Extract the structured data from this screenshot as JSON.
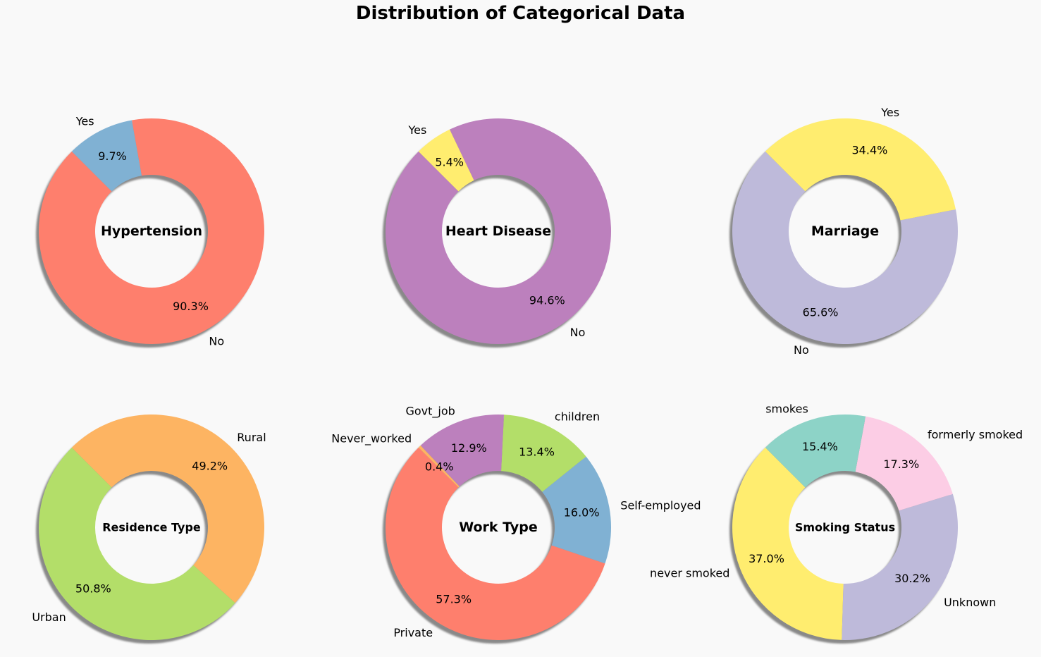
{
  "figure": {
    "title": "Distribution of Categorical Data",
    "background": "#f9f9f9"
  },
  "chart_data": [
    {
      "type": "pie",
      "donut": true,
      "center_label": "Hypertension",
      "startangle": 135,
      "slices": [
        {
          "label": "No",
          "value": 90.3,
          "pct": "90.3%",
          "color": "#fe7f6d"
        },
        {
          "label": "Yes",
          "value": 9.7,
          "pct": "9.7%",
          "color": "#80b1d3"
        }
      ]
    },
    {
      "type": "pie",
      "donut": true,
      "center_label": "Heart Disease",
      "startangle": 135,
      "slices": [
        {
          "label": "No",
          "value": 94.6,
          "pct": "94.6%",
          "color": "#bc80bd"
        },
        {
          "label": "Yes",
          "value": 5.4,
          "pct": "5.4%",
          "color": "#ffed6f"
        }
      ]
    },
    {
      "type": "pie",
      "donut": true,
      "center_label": "Marriage",
      "startangle": 135,
      "slices": [
        {
          "label": "No",
          "value": 65.6,
          "pct": "65.6%",
          "color": "#bebada"
        },
        {
          "label": "Yes",
          "value": 34.4,
          "pct": "34.4%",
          "color": "#ffed6f"
        }
      ]
    },
    {
      "type": "pie",
      "donut": true,
      "center_label": "Residence Type",
      "startangle": 135,
      "slices": [
        {
          "label": "Urban",
          "value": 50.8,
          "pct": "50.8%",
          "color": "#b3de69"
        },
        {
          "label": "Rural",
          "value": 49.2,
          "pct": "49.2%",
          "color": "#fdb462"
        }
      ]
    },
    {
      "type": "pie",
      "donut": true,
      "center_label": "Work Type",
      "startangle": 135,
      "slices": [
        {
          "label": "Private",
          "value": 57.3,
          "pct": "57.3%",
          "color": "#fe7f6d"
        },
        {
          "label": "Self-employed",
          "value": 16.0,
          "pct": "16.0%",
          "color": "#80b1d3"
        },
        {
          "label": "children",
          "value": 13.4,
          "pct": "13.4%",
          "color": "#b3de69"
        },
        {
          "label": "Govt_job",
          "value": 12.9,
          "pct": "12.9%",
          "color": "#bc80bd"
        },
        {
          "label": "Never_worked",
          "value": 0.4,
          "pct": "0.4%",
          "color": "#fdb462"
        }
      ]
    },
    {
      "type": "pie",
      "donut": true,
      "center_label": "Smoking Status",
      "startangle": 135,
      "slices": [
        {
          "label": "never smoked",
          "value": 37.0,
          "pct": "37.0%",
          "color": "#ffed6f"
        },
        {
          "label": "Unknown",
          "value": 30.2,
          "pct": "30.2%",
          "color": "#bebada"
        },
        {
          "label": "formerly smoked",
          "value": 17.3,
          "pct": "17.3%",
          "color": "#fccde5"
        },
        {
          "label": "smokes",
          "value": 15.4,
          "pct": "15.4%",
          "color": "#8dd3c7"
        }
      ]
    }
  ]
}
